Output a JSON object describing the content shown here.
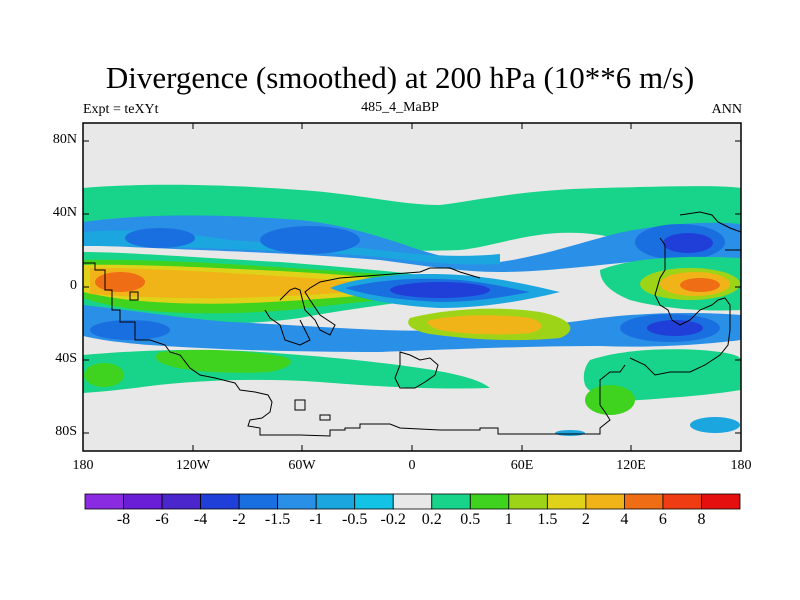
{
  "title": "Divergence (smoothed) at 200 hPa (10**6 m/s)",
  "subtitle_left": "Expt = teXYt",
  "subtitle_center": "485_4_MaBP",
  "subtitle_right": "ANN",
  "y_axis": {
    "ticks": [
      "80N",
      "40N",
      "0",
      "40S",
      "80S"
    ],
    "lat_range": [
      -90,
      90
    ]
  },
  "x_axis": {
    "ticks": [
      "180",
      "120W",
      "60W",
      "0",
      "60E",
      "120E",
      "180"
    ],
    "lon_range": [
      -180,
      180
    ]
  },
  "colorbar": {
    "labels": [
      "-8",
      "-6",
      "-4",
      "-2",
      "-1.5",
      "-1",
      "-0.5",
      "-0.2",
      "0.2",
      "0.5",
      "1",
      "1.5",
      "2",
      "4",
      "6",
      "8"
    ],
    "colors": [
      "#8a2be2",
      "#6a1fd6",
      "#4b26cc",
      "#1f3fd8",
      "#1a6fe0",
      "#2a8fe6",
      "#1ba6e0",
      "#12c3e6",
      "#e8e8e8",
      "#18d48a",
      "#3fd21f",
      "#9ed417",
      "#dfd218",
      "#f0b418",
      "#ef6d15",
      "#ef3c12",
      "#e60f0f"
    ]
  },
  "background_color": "#e8e8e8",
  "field_colors": {
    "weak": "#e8e8e8",
    "pos_green": "#18d48a",
    "pos_lime": "#3fd21f",
    "pos_yellowgreen": "#9ed417",
    "pos_yellow": "#dfd218",
    "pos_orange": "#f0b418",
    "pos_red": "#ef6d15",
    "neg_cyan": "#12c3e6",
    "neg_sky": "#1ba6e0",
    "neg_blue": "#2a8fe6",
    "neg_mid": "#1a6fe0",
    "neg_deep": "#1f3fd8"
  }
}
